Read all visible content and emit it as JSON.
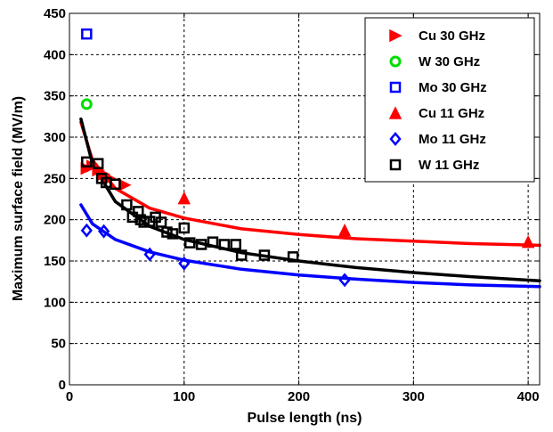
{
  "chart_data": {
    "type": "scatter",
    "title": "",
    "xlabel": "Pulse length (ns)",
    "ylabel": "Maximum surface field (MV/m)",
    "xlim": [
      0,
      410
    ],
    "ylim": [
      0,
      450
    ],
    "x_ticks": [
      0,
      100,
      200,
      300,
      400
    ],
    "y_ticks": [
      0,
      50,
      100,
      150,
      200,
      250,
      300,
      350,
      400,
      450
    ],
    "x_tick_labels": [
      "0",
      "100",
      "200",
      "300",
      "400"
    ],
    "y_tick_labels": [
      "0",
      "50",
      "100",
      "150",
      "200",
      "250",
      "300",
      "350",
      "400",
      "450"
    ],
    "grid": true,
    "grid_style": "dashed",
    "legend_position": "top-right",
    "series": [
      {
        "name": "Cu 30 GHz",
        "marker": "triangle-right",
        "color": "#ff0000",
        "points": [
          [
            15,
            262
          ],
          [
            20,
            265
          ],
          [
            25,
            260
          ],
          [
            30,
            255
          ],
          [
            35,
            250
          ],
          [
            48,
            242
          ]
        ]
      },
      {
        "name": "W 30 GHz",
        "marker": "circle",
        "color": "#00dd00",
        "points": [
          [
            15,
            340
          ]
        ]
      },
      {
        "name": "Mo 30 GHz",
        "marker": "square",
        "color": "#0000ff",
        "points": [
          [
            15,
            425
          ]
        ]
      },
      {
        "name": "Cu 11 GHz",
        "marker": "triangle-up",
        "color": "#ff0000",
        "points": [
          [
            100,
            226
          ],
          [
            240,
            187
          ],
          [
            400,
            173
          ]
        ]
      },
      {
        "name": "Mo 11 GHz",
        "marker": "diamond",
        "color": "#0000ff",
        "points": [
          [
            15,
            187
          ],
          [
            30,
            186
          ],
          [
            70,
            158
          ],
          [
            100,
            147
          ],
          [
            240,
            127
          ]
        ]
      },
      {
        "name": "W 11 GHz",
        "marker": "square-open",
        "color": "#000000",
        "points": [
          [
            15,
            270
          ],
          [
            25,
            268
          ],
          [
            28,
            250
          ],
          [
            32,
            245
          ],
          [
            40,
            243
          ],
          [
            50,
            218
          ],
          [
            55,
            203
          ],
          [
            60,
            210
          ],
          [
            62,
            200
          ],
          [
            65,
            197
          ],
          [
            70,
            198
          ],
          [
            75,
            203
          ],
          [
            80,
            197
          ],
          [
            85,
            185
          ],
          [
            90,
            183
          ],
          [
            100,
            190
          ],
          [
            105,
            172
          ],
          [
            115,
            170
          ],
          [
            125,
            173
          ],
          [
            135,
            170
          ],
          [
            145,
            170
          ],
          [
            150,
            157
          ],
          [
            170,
            157
          ],
          [
            195,
            155
          ]
        ]
      }
    ],
    "fit_curves": [
      {
        "color": "#ff0000",
        "points": [
          [
            10,
            318
          ],
          [
            20,
            272
          ],
          [
            40,
            238
          ],
          [
            70,
            214
          ],
          [
            100,
            202
          ],
          [
            150,
            189
          ],
          [
            200,
            182
          ],
          [
            250,
            177
          ],
          [
            300,
            174
          ],
          [
            350,
            171
          ],
          [
            410,
            169
          ]
        ]
      },
      {
        "color": "#000000",
        "points": [
          [
            10,
            322
          ],
          [
            20,
            268
          ],
          [
            40,
            222
          ],
          [
            70,
            192
          ],
          [
            100,
            176
          ],
          [
            150,
            160
          ],
          [
            200,
            150
          ],
          [
            250,
            142
          ],
          [
            300,
            136
          ],
          [
            350,
            131
          ],
          [
            410,
            126
          ]
        ]
      },
      {
        "color": "#0000ff",
        "points": [
          [
            10,
            218
          ],
          [
            20,
            195
          ],
          [
            40,
            176
          ],
          [
            70,
            161
          ],
          [
            100,
            151
          ],
          [
            150,
            140
          ],
          [
            200,
            133
          ],
          [
            250,
            128
          ],
          [
            300,
            124
          ],
          [
            350,
            121
          ],
          [
            410,
            119
          ]
        ]
      }
    ]
  }
}
